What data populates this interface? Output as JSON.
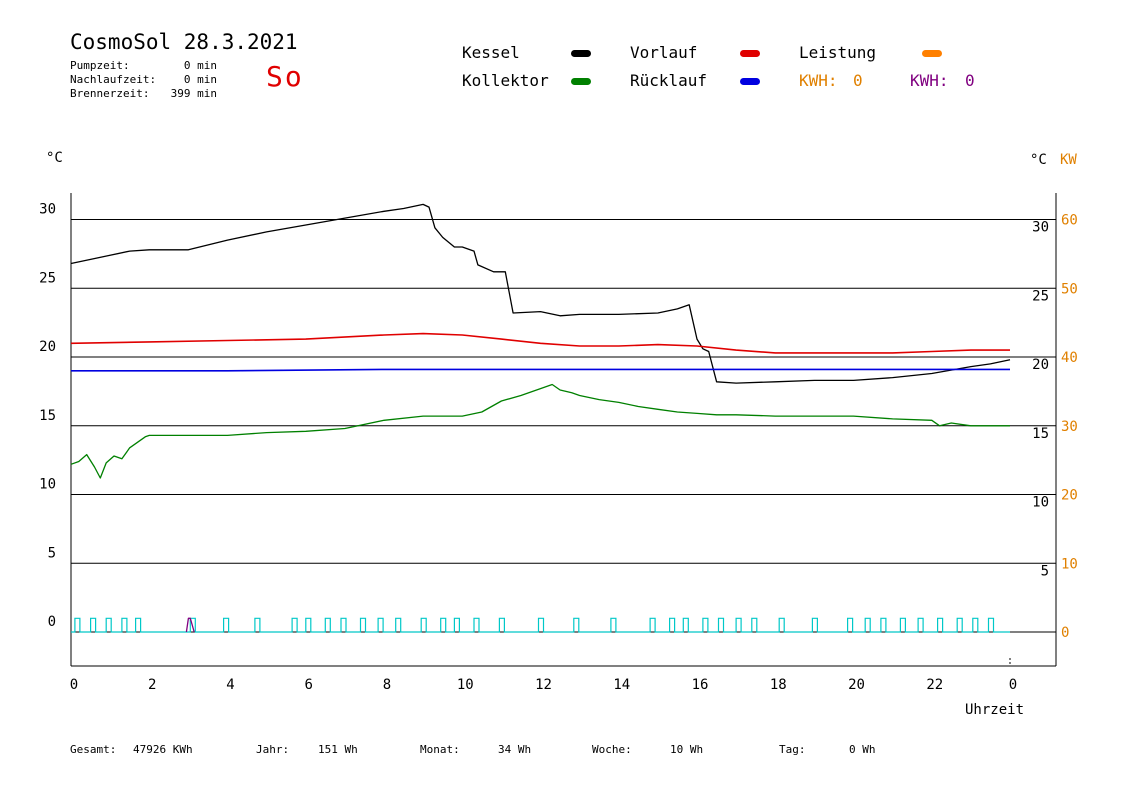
{
  "header": {
    "title": "CosmoSol 28.3.2021",
    "day": "So",
    "stats": [
      {
        "label": "Pumpzeit:",
        "value": "0 min"
      },
      {
        "label": "Nachlaufzeit:",
        "value": "0 min"
      },
      {
        "label": "Brennerzeit:",
        "value": "399 min"
      }
    ]
  },
  "legend": {
    "kessel": {
      "label": "Kessel",
      "color": "#000000"
    },
    "vorlauf": {
      "label": "Vorlauf",
      "color": "#e00000"
    },
    "leistung": {
      "label": "Leistung",
      "color": "#ff8000"
    },
    "kollektor": {
      "label": "Kollektor",
      "color": "#008000"
    },
    "ruecklauf": {
      "label": "Rücklauf",
      "color": "#0000e0"
    },
    "kwh1": {
      "label": "KWH:",
      "value": "0",
      "color": "#e08000"
    },
    "kwh2": {
      "label": "KWH:",
      "value": "0",
      "color": "#800080"
    }
  },
  "footer": [
    {
      "label": "Gesamt:",
      "value": "47926 KWh"
    },
    {
      "label": "Jahr:",
      "value": "151 Wh"
    },
    {
      "label": "Monat:",
      "value": "34 Wh"
    },
    {
      "label": "Woche:",
      "value": "10 Wh"
    },
    {
      "label": "Tag:",
      "value": "0 Wh"
    }
  ],
  "chart_data": {
    "type": "line",
    "xlabel": "Uhrzeit",
    "ylabel_left": "°C",
    "ylabel_right_temp": "°C",
    "ylabel_right_power": "KW",
    "xlim": [
      0,
      24
    ],
    "ylim": [
      -2.5,
      32.5
    ],
    "x_ticks": [
      "0",
      "2",
      "4",
      "6",
      "8",
      "10",
      "12",
      "14",
      "16",
      "18",
      "20",
      "22",
      "0"
    ],
    "y_ticks_left": [
      "0",
      "5",
      "10",
      "15",
      "20",
      "25",
      "30"
    ],
    "y_ticks_right_temp": [
      "5",
      "10",
      "15",
      "20",
      "25",
      "30"
    ],
    "y_ticks_right_power": [
      "0",
      "10",
      "20",
      "30",
      "40",
      "50",
      "60"
    ],
    "gridlines_y": [
      0,
      5,
      10,
      15,
      20,
      25,
      30
    ],
    "series": [
      {
        "name": "Kessel",
        "color": "#000000",
        "x": [
          0,
          0.5,
          1,
          1.5,
          2,
          3,
          4,
          5,
          6,
          7,
          8,
          8.5,
          9,
          9.15,
          9.3,
          9.5,
          9.8,
          10,
          10.3,
          10.4,
          10.8,
          11.1,
          11.3,
          12,
          12.5,
          13,
          14,
          15,
          15.5,
          15.8,
          16,
          16.15,
          16.3,
          16.5,
          17,
          18,
          19,
          20,
          21,
          22,
          23,
          23.5,
          24
        ],
        "y": [
          26.8,
          27.1,
          27.4,
          27.7,
          27.8,
          27.8,
          28.5,
          29.1,
          29.6,
          30.1,
          30.6,
          30.8,
          31.1,
          30.9,
          29.4,
          28.7,
          28.0,
          28.0,
          27.7,
          26.7,
          26.2,
          26.2,
          23.2,
          23.3,
          23.0,
          23.1,
          23.1,
          23.2,
          23.5,
          23.8,
          21.3,
          20.6,
          20.4,
          18.2,
          18.1,
          18.2,
          18.3,
          18.3,
          18.5,
          18.8,
          19.3,
          19.5,
          19.8
        ]
      },
      {
        "name": "Vorlauf",
        "color": "#e00000",
        "x": [
          0,
          2,
          4,
          6,
          8,
          9,
          10,
          11,
          12,
          13,
          14,
          15,
          16,
          17,
          18,
          19,
          20,
          21,
          22,
          23,
          24
        ],
        "y": [
          21.0,
          21.1,
          21.2,
          21.3,
          21.6,
          21.7,
          21.6,
          21.3,
          21.0,
          20.8,
          20.8,
          20.9,
          20.8,
          20.5,
          20.3,
          20.3,
          20.3,
          20.3,
          20.4,
          20.5,
          20.5
        ]
      },
      {
        "name": "Rücklauf",
        "color": "#0000e0",
        "x": [
          0,
          4,
          8,
          12,
          16,
          20,
          24
        ],
        "y": [
          19.0,
          19.0,
          19.1,
          19.1,
          19.1,
          19.1,
          19.1
        ]
      },
      {
        "name": "Kollektor",
        "color": "#008000",
        "x": [
          0,
          0.2,
          0.4,
          0.6,
          0.75,
          0.9,
          1.1,
          1.3,
          1.5,
          1.7,
          1.9,
          2.0,
          2.5,
          3.0,
          3.5,
          4.0,
          5.0,
          6.0,
          7.0,
          8.0,
          9.0,
          10.0,
          10.5,
          11.0,
          11.5,
          12.0,
          12.3,
          12.5,
          12.8,
          13.0,
          13.5,
          14.0,
          14.5,
          15.0,
          15.5,
          16.0,
          16.5,
          17.0,
          18.0,
          19.0,
          20.0,
          21.0,
          22.0,
          22.2,
          22.5,
          23.0,
          24.0
        ],
        "y": [
          12.2,
          12.4,
          12.9,
          12.0,
          11.2,
          12.3,
          12.8,
          12.6,
          13.4,
          13.8,
          14.2,
          14.3,
          14.3,
          14.3,
          14.3,
          14.3,
          14.5,
          14.6,
          14.8,
          15.4,
          15.7,
          15.7,
          16.0,
          16.8,
          17.2,
          17.7,
          18.0,
          17.6,
          17.4,
          17.2,
          16.9,
          16.7,
          16.4,
          16.2,
          16.0,
          15.9,
          15.8,
          15.8,
          15.7,
          15.7,
          15.7,
          15.5,
          15.4,
          15.0,
          15.2,
          15.0,
          15.0
        ]
      },
      {
        "name": "Brenner",
        "color": "#00c8c8",
        "pulses": [
          0.1,
          0.5,
          0.9,
          1.3,
          1.65,
          3.05,
          3.9,
          4.7,
          5.65,
          6.0,
          6.5,
          6.9,
          7.4,
          7.85,
          8.3,
          8.95,
          9.45,
          9.8,
          10.3,
          10.95,
          11.95,
          12.85,
          13.8,
          14.8,
          15.3,
          15.65,
          16.15,
          16.55,
          17.0,
          17.4,
          18.1,
          18.95,
          19.85,
          20.3,
          20.7,
          21.2,
          21.65,
          22.15,
          22.65,
          23.05,
          23.45
        ],
        "pulse_height": 1.0
      },
      {
        "name": "Pumpe",
        "color": "#800080",
        "x": [
          2.95,
          3.0,
          3.05,
          3.15
        ],
        "y": [
          0,
          1.0,
          1.0,
          0
        ]
      }
    ]
  }
}
